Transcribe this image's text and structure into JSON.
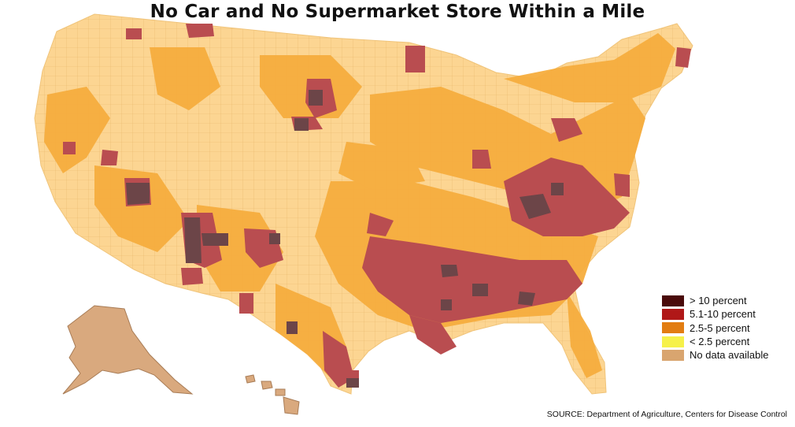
{
  "title": "No Car and No Supermarket Store Within a Mile",
  "legend": [
    {
      "label": "> 10 percent",
      "color": "#4a0a0a"
    },
    {
      "label": "5.1-10 percent",
      "color": "#b01818"
    },
    {
      "label": "2.5-5 percent",
      "color": "#e27d12"
    },
    {
      "label": "< 2.5 percent",
      "color": "#f6f14a"
    },
    {
      "label": "No data available",
      "color": "#d9a56f"
    }
  ],
  "source": "SOURCE: Department of Agriculture, Centers for Disease Control",
  "map_colors": {
    "base_light": "#fcd592",
    "mid": "#f6ad3e",
    "high": "#b94d50",
    "highest": "#6c4548",
    "no_data": "#d9a97e",
    "border": "#e8b568"
  }
}
